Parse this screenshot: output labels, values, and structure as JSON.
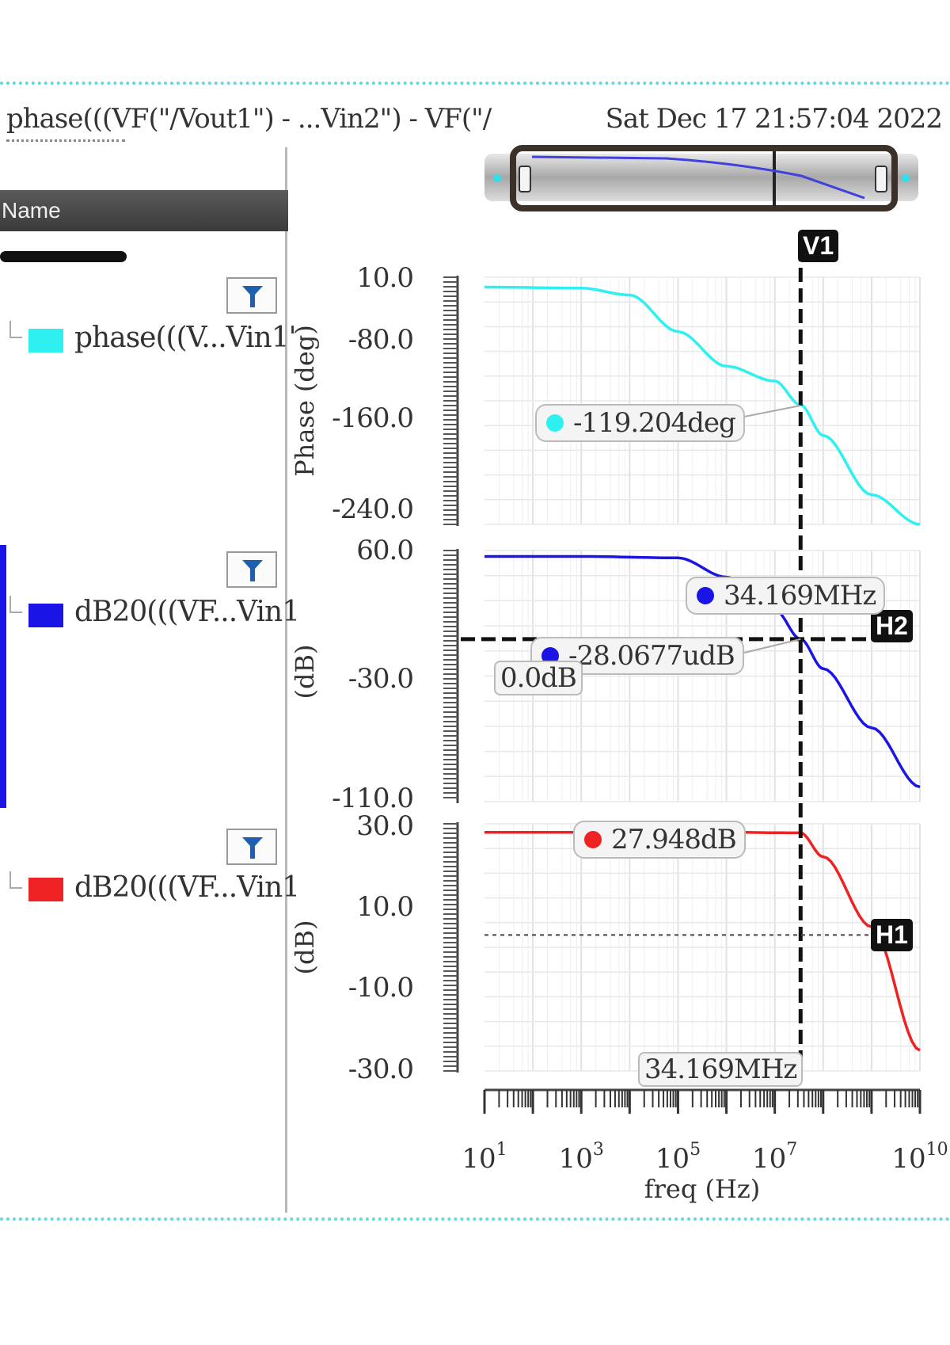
{
  "header": {
    "title": "phase(((VF(\"/Vout1\") - ...Vin2\") - VF(\"/",
    "date": "Sat Dec 17 21:57:04 2022"
  },
  "sidebar": {
    "column_header": "Name",
    "traces": [
      {
        "label": "phase(((V...Vin1'",
        "color": "#2ef0f0"
      },
      {
        "label": "dB20(((VF...Vin1",
        "color": "#1a14e6"
      },
      {
        "label": "dB20(((VF...Vin1",
        "color": "#ee2222"
      }
    ]
  },
  "markers": {
    "v1": "V1",
    "h1": "H1",
    "h2": "H2",
    "phase_label": "-119.204deg",
    "mid_freq_label": "34.169MHz",
    "mid_db_label": "-28.0677udB",
    "zero_label": "0.0dB",
    "bot_db_label": "27.948dB",
    "bot_freq_label": "34.169MHz"
  },
  "chart_data": [
    {
      "type": "line",
      "ylabel": "Phase (deg)",
      "yticks": [
        "10.0",
        "-80.0",
        "-160.0",
        "-240.0"
      ],
      "ylim": [
        -240,
        10
      ],
      "xscale": "log",
      "xlim": [
        10,
        10000000000
      ],
      "color": "#2ef0f0",
      "series": [
        {
          "x": [
            10,
            1000,
            10000,
            100000,
            1000000,
            10000000,
            34169000,
            100000000,
            1000000000,
            10000000000
          ],
          "y": [
            0,
            -1,
            -8,
            -45,
            -80,
            -95,
            -119.204,
            -150,
            -210,
            -240
          ]
        }
      ]
    },
    {
      "type": "line",
      "ylabel": "(dB)",
      "yticks": [
        "60.0",
        "-30.0",
        "-110.0"
      ],
      "ylim": [
        -110,
        60
      ],
      "xscale": "log",
      "xlim": [
        10,
        10000000000
      ],
      "color": "#1a14e6",
      "series": [
        {
          "x": [
            10,
            1000,
            100000,
            1000000,
            10000000,
            34169000,
            100000000,
            1000000000,
            10000000000
          ],
          "y": [
            56,
            56,
            55,
            42,
            20,
            0,
            -20,
            -60,
            -100
          ]
        }
      ]
    },
    {
      "type": "line",
      "ylabel": "(dB)",
      "yticks": [
        "30.0",
        "10.0",
        "-10.0",
        "-30.0"
      ],
      "ylim": [
        -30,
        30
      ],
      "xscale": "log",
      "xlim": [
        10,
        10000000000
      ],
      "color": "#ee2222",
      "series": [
        {
          "x": [
            10,
            1000,
            1000000,
            34169000,
            100000000,
            1000000000,
            10000000000
          ],
          "y": [
            27.948,
            27.948,
            27.948,
            27.8,
            22,
            5,
            -25
          ]
        }
      ]
    }
  ],
  "x_axis": {
    "xlabel": "freq (Hz)",
    "ticks": [
      {
        "base": "10",
        "exp": "1",
        "value": 10
      },
      {
        "base": "10",
        "exp": "3",
        "value": 1000
      },
      {
        "base": "10",
        "exp": "5",
        "value": 100000
      },
      {
        "base": "10",
        "exp": "7",
        "value": 10000000
      },
      {
        "base": "10",
        "exp": "10",
        "value": 10000000000
      }
    ]
  }
}
